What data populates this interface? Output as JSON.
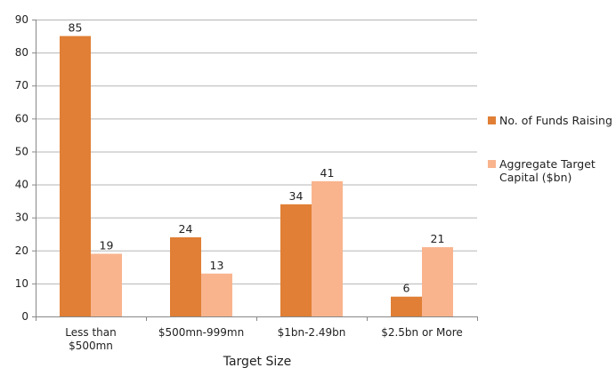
{
  "chart_data": {
    "type": "bar",
    "categories": [
      "Less than\n$500mn",
      "$500mn-999mn",
      "$1bn-2.49bn",
      "$2.5bn or More"
    ],
    "series": [
      {
        "name": "No. of Funds Raising",
        "values": [
          85,
          24,
          34,
          6
        ],
        "color": "#e07f35"
      },
      {
        "name": "Aggregate Target Capital ($bn)",
        "values": [
          19,
          13,
          41,
          21
        ],
        "color": "#f9b48e"
      }
    ],
    "xlabel": "Target Size",
    "ylabel": "",
    "ylim": [
      0,
      90
    ],
    "yticks": [
      0,
      10,
      20,
      30,
      40,
      50,
      60,
      70,
      80,
      90
    ],
    "grid": true,
    "legend_position": "right"
  }
}
